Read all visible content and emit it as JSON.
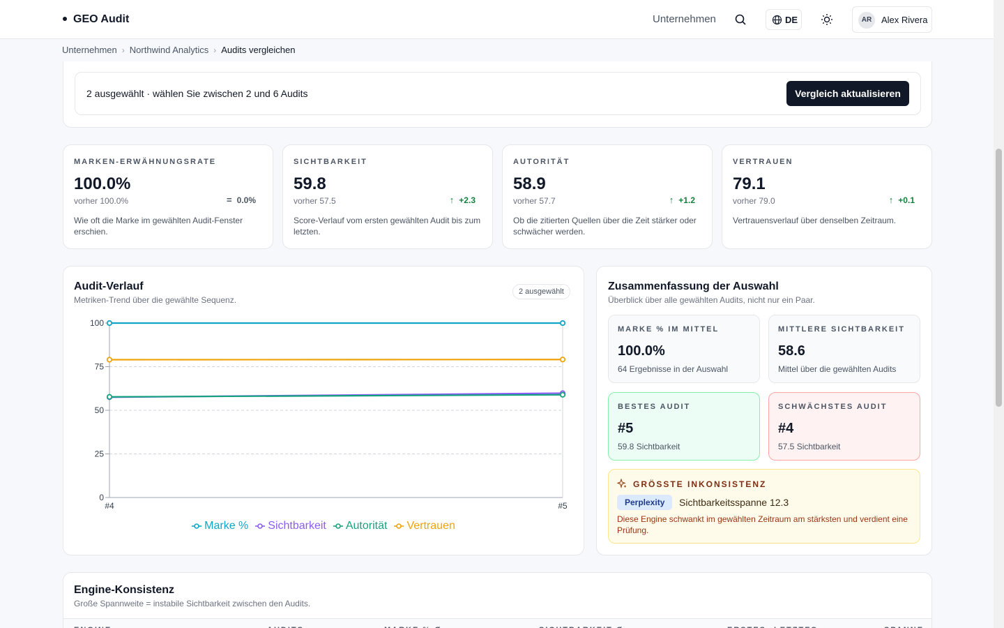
{
  "header": {
    "brand": "GEO Audit",
    "nav": "Unternehmen",
    "language": "DE",
    "user_initials": "AR",
    "user_name": "Alex Rivera"
  },
  "breadcrumb": [
    "Unternehmen",
    "Northwind Analytics",
    "Audits vergleichen"
  ],
  "selection": {
    "status": "2 ausgewählt · wählen Sie zwischen 2 und 6 Audits",
    "button": "Vergleich aktualisieren"
  },
  "kpis": [
    {
      "label": "MARKEN-ERWÄHNUNGSRATE",
      "value": "100.0%",
      "previous": "vorher 100.0%",
      "delta": "0.0%",
      "trend": "flat",
      "description": "Wie oft die Marke im gewählten Audit-Fenster erschien."
    },
    {
      "label": "SICHTBARKEIT",
      "value": "59.8",
      "previous": "vorher 57.5",
      "delta": "+2.3",
      "trend": "up",
      "description": "Score-Verlauf vom ersten gewählten Audit bis zum letzten."
    },
    {
      "label": "AUTORITÄT",
      "value": "58.9",
      "previous": "vorher 57.7",
      "delta": "+1.2",
      "trend": "up",
      "description": "Ob die zitierten Quellen über die Zeit stärker oder schwächer werden."
    },
    {
      "label": "VERTRAUEN",
      "value": "79.1",
      "previous": "vorher 79.0",
      "delta": "+0.1",
      "trend": "up",
      "description": "Vertrauensverlauf über denselben Zeitraum."
    }
  ],
  "chart_data": {
    "type": "line",
    "title": "Audit-Verlauf",
    "subtitle": "Metriken-Trend über die gewählte Sequenz.",
    "badge": "2 ausgewählt",
    "categories": [
      "#4",
      "#5"
    ],
    "series": [
      {
        "name": "Marke %",
        "color": "#0ea5c9",
        "values": [
          100,
          100
        ]
      },
      {
        "name": "Sichtbarkeit",
        "color": "#8b5cf6",
        "values": [
          57.5,
          59.8
        ]
      },
      {
        "name": "Autorität",
        "color": "#14a37f",
        "values": [
          57.7,
          58.9
        ]
      },
      {
        "name": "Vertrauen",
        "color": "#f0a30a",
        "values": [
          79.0,
          79.1
        ]
      }
    ],
    "ylim": [
      0,
      100
    ],
    "yticks": [
      0,
      25,
      50,
      75,
      100
    ],
    "grid": true,
    "legend": "bottom"
  },
  "summary": {
    "title": "Zusammenfassung der Auswahl",
    "subtitle": "Überblick über alle gewählten Audits, nicht nur ein Paar.",
    "cards": [
      {
        "label": "MARKE % IM MITTEL",
        "value": "100.0%",
        "note": "64 Ergebnisse in der Auswahl",
        "tone": "neutral"
      },
      {
        "label": "MITTLERE SICHTBARKEIT",
        "value": "58.6",
        "note": "Mittel über die gewählten Audits",
        "tone": "neutral"
      },
      {
        "label": "BESTES AUDIT",
        "value": "#5",
        "note": "59.8 Sichtbarkeit",
        "tone": "green"
      },
      {
        "label": "SCHWÄCHSTES AUDIT",
        "value": "#4",
        "note": "57.5 Sichtbarkeit",
        "tone": "red"
      }
    ],
    "inconsistency": {
      "label": "GRÖSSTE INKONSISTENZ",
      "engine": "Perplexity",
      "span": "Sichtbarkeitsspanne 12.3",
      "description": "Diese Engine schwankt im gewählten Zeitraum am stärksten und verdient eine Prüfung."
    }
  },
  "engine_table": {
    "title": "Engine-Konsistenz",
    "subtitle": "Große Spannweite = instabile Sichtbarkeit zwischen den Audits.",
    "columns": [
      "ENGINE",
      "AUDITS",
      "MARKE % Ø",
      "SICHTBARKEIT Ø",
      "ERSTES",
      "LETZTES",
      "SPANNE"
    ]
  }
}
